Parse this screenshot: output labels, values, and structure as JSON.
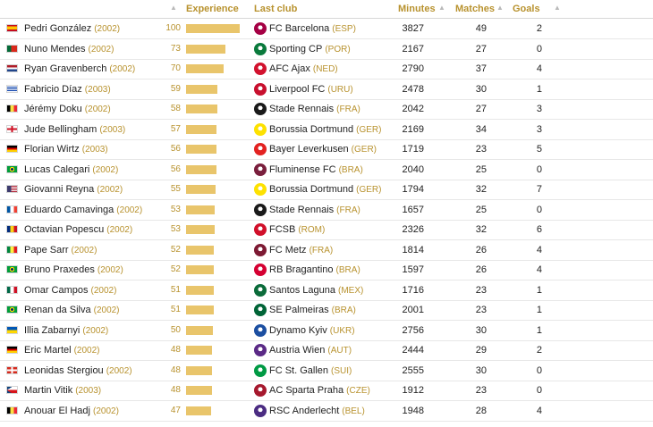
{
  "header": {
    "experience": "Experience",
    "last_club": "Last club",
    "minutes": "Minutes",
    "matches": "Matches",
    "goals": "Goals",
    "sort_icon": "▲"
  },
  "colors": {
    "accent": "#b8922e",
    "bar": "#e9c56b"
  },
  "players": [
    {
      "name": "Pedri González",
      "year": "(2002)",
      "flag": "spain",
      "experience": "100",
      "club": "FC Barcelona",
      "country": "(ESP)",
      "crest": "#a50044",
      "minutes": "3827",
      "matches": "49",
      "goals": "2"
    },
    {
      "name": "Nuno Mendes",
      "year": "(2002)",
      "flag": "portugal",
      "experience": "73",
      "club": "Sporting CP",
      "country": "(POR)",
      "crest": "#0a7a3c",
      "minutes": "2167",
      "matches": "27",
      "goals": "0"
    },
    {
      "name": "Ryan Gravenberch",
      "year": "(2002)",
      "flag": "netherlands",
      "experience": "70",
      "club": "AFC Ajax",
      "country": "(NED)",
      "crest": "#d2122e",
      "minutes": "2790",
      "matches": "37",
      "goals": "4"
    },
    {
      "name": "Fabricio Díaz",
      "year": "(2003)",
      "flag": "uruguay",
      "experience": "59",
      "club": "Liverpool FC",
      "country": "(URU)",
      "crest": "#c8102e",
      "minutes": "2478",
      "matches": "30",
      "goals": "1"
    },
    {
      "name": "Jérémy Doku",
      "year": "(2002)",
      "flag": "belgium",
      "experience": "58",
      "club": "Stade Rennais",
      "country": "(FRA)",
      "crest": "#1a1a1a",
      "minutes": "2042",
      "matches": "27",
      "goals": "3"
    },
    {
      "name": "Jude Bellingham",
      "year": "(2003)",
      "flag": "england",
      "experience": "57",
      "club": "Borussia Dortmund",
      "country": "(GER)",
      "crest": "#fde100",
      "minutes": "2169",
      "matches": "34",
      "goals": "3"
    },
    {
      "name": "Florian Wirtz",
      "year": "(2003)",
      "flag": "germany",
      "experience": "56",
      "club": "Bayer Leverkusen",
      "country": "(GER)",
      "crest": "#e32221",
      "minutes": "1719",
      "matches": "23",
      "goals": "5"
    },
    {
      "name": "Lucas Calegari",
      "year": "(2002)",
      "flag": "brazil",
      "experience": "56",
      "club": "Fluminense FC",
      "country": "(BRA)",
      "crest": "#7a1f3d",
      "minutes": "2040",
      "matches": "25",
      "goals": "0"
    },
    {
      "name": "Giovanni Reyna",
      "year": "(2002)",
      "flag": "usa",
      "experience": "55",
      "club": "Borussia Dortmund",
      "country": "(GER)",
      "crest": "#fde100",
      "minutes": "1794",
      "matches": "32",
      "goals": "7"
    },
    {
      "name": "Eduardo Camavinga",
      "year": "(2002)",
      "flag": "france",
      "experience": "53",
      "club": "Stade Rennais",
      "country": "(FRA)",
      "crest": "#1a1a1a",
      "minutes": "1657",
      "matches": "25",
      "goals": "0"
    },
    {
      "name": "Octavian Popescu",
      "year": "(2002)",
      "flag": "romania",
      "experience": "53",
      "club": "FCSB",
      "country": "(ROM)",
      "crest": "#d1102a",
      "minutes": "2326",
      "matches": "32",
      "goals": "6"
    },
    {
      "name": "Pape Sarr",
      "year": "(2002)",
      "flag": "senegal",
      "experience": "52",
      "club": "FC Metz",
      "country": "(FRA)",
      "crest": "#7d1a33",
      "minutes": "1814",
      "matches": "26",
      "goals": "4"
    },
    {
      "name": "Bruno Praxedes",
      "year": "(2002)",
      "flag": "brazil",
      "experience": "52",
      "club": "RB Bragantino",
      "country": "(BRA)",
      "crest": "#d50032",
      "minutes": "1597",
      "matches": "26",
      "goals": "4"
    },
    {
      "name": "Omar Campos",
      "year": "(2002)",
      "flag": "mexico",
      "experience": "51",
      "club": "Santos Laguna",
      "country": "(MEX)",
      "crest": "#0b6b3a",
      "minutes": "1716",
      "matches": "23",
      "goals": "1"
    },
    {
      "name": "Renan da Silva",
      "year": "(2002)",
      "flag": "brazil",
      "experience": "51",
      "club": "SE Palmeiras",
      "country": "(BRA)",
      "crest": "#006437",
      "minutes": "2001",
      "matches": "23",
      "goals": "1"
    },
    {
      "name": "Illia Zabarnyi",
      "year": "(2002)",
      "flag": "ukraine",
      "experience": "50",
      "club": "Dynamo Kyiv",
      "country": "(UKR)",
      "crest": "#1c4fa1",
      "minutes": "2756",
      "matches": "30",
      "goals": "1"
    },
    {
      "name": "Eric Martel",
      "year": "(2002)",
      "flag": "germany",
      "experience": "48",
      "club": "Austria Wien",
      "country": "(AUT)",
      "crest": "#5b2a86",
      "minutes": "2444",
      "matches": "29",
      "goals": "2"
    },
    {
      "name": "Leonidas Stergiou",
      "year": "(2002)",
      "flag": "switzerland",
      "experience": "48",
      "club": "FC St. Gallen",
      "country": "(SUI)",
      "crest": "#009a44",
      "minutes": "2555",
      "matches": "30",
      "goals": "0"
    },
    {
      "name": "Martin Vitik",
      "year": "(2003)",
      "flag": "czechia",
      "experience": "48",
      "club": "AC Sparta Praha",
      "country": "(CZE)",
      "crest": "#a6192e",
      "minutes": "1912",
      "matches": "23",
      "goals": "0"
    },
    {
      "name": "Anouar El Hadj",
      "year": "(2002)",
      "flag": "belgium",
      "experience": "47",
      "club": "RSC Anderlecht",
      "country": "(BEL)",
      "crest": "#4b2c82",
      "minutes": "1948",
      "matches": "28",
      "goals": "4"
    }
  ]
}
